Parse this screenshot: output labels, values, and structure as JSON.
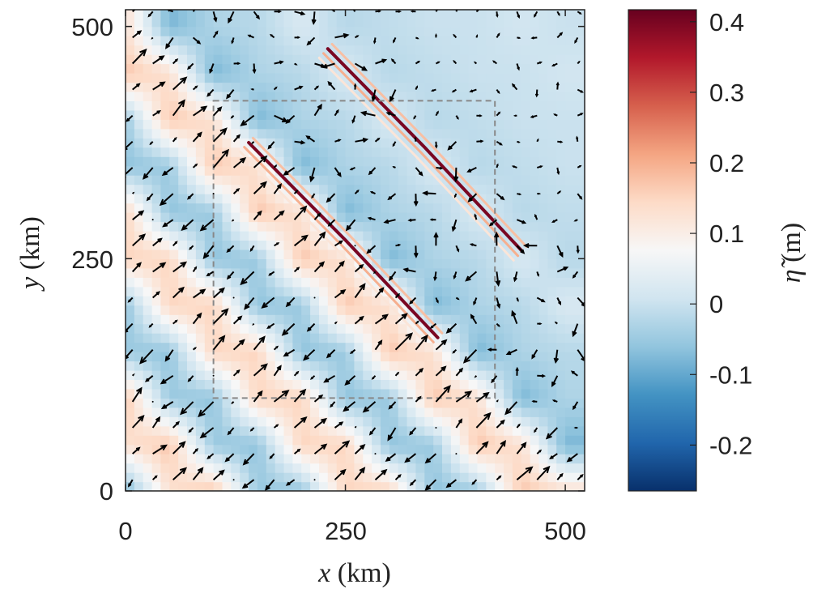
{
  "chart_data": {
    "type": "heatmap",
    "overlay": "quiver",
    "xlabel_var": "x",
    "xlabel_unit": "(km)",
    "ylabel_var": "y",
    "ylabel_unit": "(km)",
    "xlim": [
      0,
      522
    ],
    "ylim": [
      0,
      518
    ],
    "xticks": [
      0,
      250,
      500
    ],
    "xtick_labels": [
      "0",
      "250",
      "500"
    ],
    "yticks": [
      0,
      250,
      500
    ],
    "ytick_labels": [
      "0",
      "250",
      "500"
    ],
    "grid": false,
    "grid_x": [
      0,
      50,
      100,
      150,
      200,
      250,
      300,
      350,
      400,
      450,
      500
    ],
    "grid_y": [
      500,
      450,
      400,
      350,
      300,
      250,
      200,
      150,
      100,
      50,
      0
    ],
    "z": [
      [
        0.13,
        -0.08,
        -0.03,
        -0.02,
        0.02,
        -0.02,
        -0.01,
        0.0,
        0.0,
        0.01,
        0.0
      ],
      [
        0.17,
        0.13,
        -0.08,
        -0.03,
        -0.02,
        0.02,
        -0.02,
        -0.01,
        0.0,
        0.0,
        0.01
      ],
      [
        -0.05,
        0.17,
        0.13,
        -0.08,
        -0.03,
        -0.02,
        0.02,
        -0.02,
        -0.01,
        0.0,
        0.0
      ],
      [
        -0.06,
        -0.05,
        0.17,
        0.13,
        -0.08,
        -0.03,
        -0.02,
        0.02,
        -0.02,
        -0.01,
        0.0
      ],
      [
        0.15,
        -0.06,
        -0.05,
        0.17,
        0.13,
        -0.08,
        -0.03,
        -0.02,
        0.02,
        -0.02,
        -0.01
      ],
      [
        0.15,
        0.15,
        -0.06,
        -0.05,
        0.17,
        0.13,
        -0.08,
        -0.03,
        -0.02,
        0.02,
        -0.02
      ],
      [
        -0.06,
        0.15,
        0.15,
        -0.06,
        -0.05,
        0.17,
        0.13,
        -0.08,
        -0.03,
        -0.02,
        0.02
      ],
      [
        -0.05,
        -0.06,
        0.15,
        0.15,
        -0.06,
        -0.05,
        0.17,
        0.13,
        -0.08,
        -0.03,
        -0.02
      ],
      [
        0.17,
        -0.05,
        -0.06,
        0.15,
        0.15,
        -0.06,
        -0.05,
        0.17,
        0.13,
        -0.08,
        -0.03
      ],
      [
        0.13,
        0.17,
        -0.05,
        -0.06,
        0.15,
        0.15,
        -0.06,
        -0.05,
        0.17,
        0.13,
        -0.08
      ],
      [
        -0.08,
        0.13,
        0.17,
        -0.05,
        -0.06,
        0.15,
        0.15,
        -0.06,
        -0.05,
        0.17,
        0.13
      ]
    ],
    "wave_fronts": [
      {
        "points": [
          [
            140,
            375
          ],
          [
            250,
            270
          ],
          [
            355,
            165
          ]
        ],
        "peak": 0.4
      },
      {
        "points": [
          [
            230,
            476
          ],
          [
            340,
            370
          ],
          [
            451,
            258
          ]
        ],
        "peak": 0.4
      }
    ],
    "dashed_box": {
      "x": [
        100,
        420
      ],
      "y": [
        100,
        420
      ],
      "color": "#888888"
    },
    "colorbar": {
      "label_var": "η̃",
      "label_unit": "(m)",
      "clim": [
        -0.265,
        0.417
      ],
      "ticks": [
        0.4,
        0.3,
        0.2,
        0.1,
        0,
        -0.1,
        -0.2
      ],
      "tick_labels": [
        "0.4",
        "0.3",
        "0.2",
        "0.1",
        "0",
        "-0.1",
        "-0.2"
      ],
      "colormap": [
        "#08306b",
        "#2166ac",
        "#4393c3",
        "#92c5de",
        "#d1e5f0",
        "#f7f7f7",
        "#fddbc7",
        "#f4a582",
        "#d6604d",
        "#b2182b",
        "#67001f"
      ]
    },
    "quiver": {
      "color": "#000000"
    }
  }
}
